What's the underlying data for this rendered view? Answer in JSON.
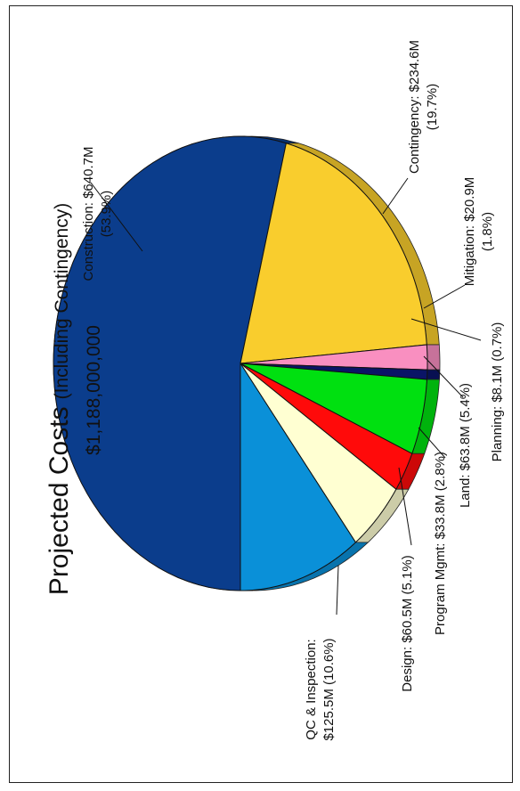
{
  "chart_data": {
    "type": "pie",
    "title_main": "Projected Costs",
    "title_paren": "(Including Contingency)",
    "total": "$1,188,000,000",
    "slices": [
      {
        "name": "Construction",
        "value": 640.7,
        "pct": 53.9,
        "color": "#0b3d8c",
        "label_lines": [
          "Construction: $640.7M",
          "(53.9%)"
        ]
      },
      {
        "name": "Contingency",
        "value": 234.6,
        "pct": 19.7,
        "color": "#f9cd2d",
        "label_lines": [
          "Contingency: $234.6M",
          "(19.7%)"
        ]
      },
      {
        "name": "Mitigation",
        "value": 20.9,
        "pct": 1.8,
        "color": "#f98fc0",
        "label_lines": [
          "Mitigation: $20.9M",
          "(1.8%)"
        ]
      },
      {
        "name": "Planning",
        "value": 8.1,
        "pct": 0.7,
        "color": "#0a1466",
        "label_lines": [
          "Planning: $8.1M (0.7%)"
        ]
      },
      {
        "name": "Land",
        "value": 63.8,
        "pct": 5.4,
        "color": "#00e010",
        "label_lines": [
          "Land: $63.8M (5.4%)"
        ]
      },
      {
        "name": "Program Mgmt",
        "value": 33.8,
        "pct": 2.8,
        "color": "#ff0a0a",
        "label_lines": [
          "Program Mgmt: $33.8M (2.8%)"
        ]
      },
      {
        "name": "Design",
        "value": 60.5,
        "pct": 5.1,
        "color": "#ffffd2",
        "label_lines": [
          "Design: $60.5M (5.1%)"
        ]
      },
      {
        "name": "QC & Inspection",
        "value": 125.5,
        "pct": 10.6,
        "color": "#0a90d8",
        "label_lines": [
          "QC & Inspection:",
          "$125.5M (10.6%)"
        ]
      }
    ]
  }
}
